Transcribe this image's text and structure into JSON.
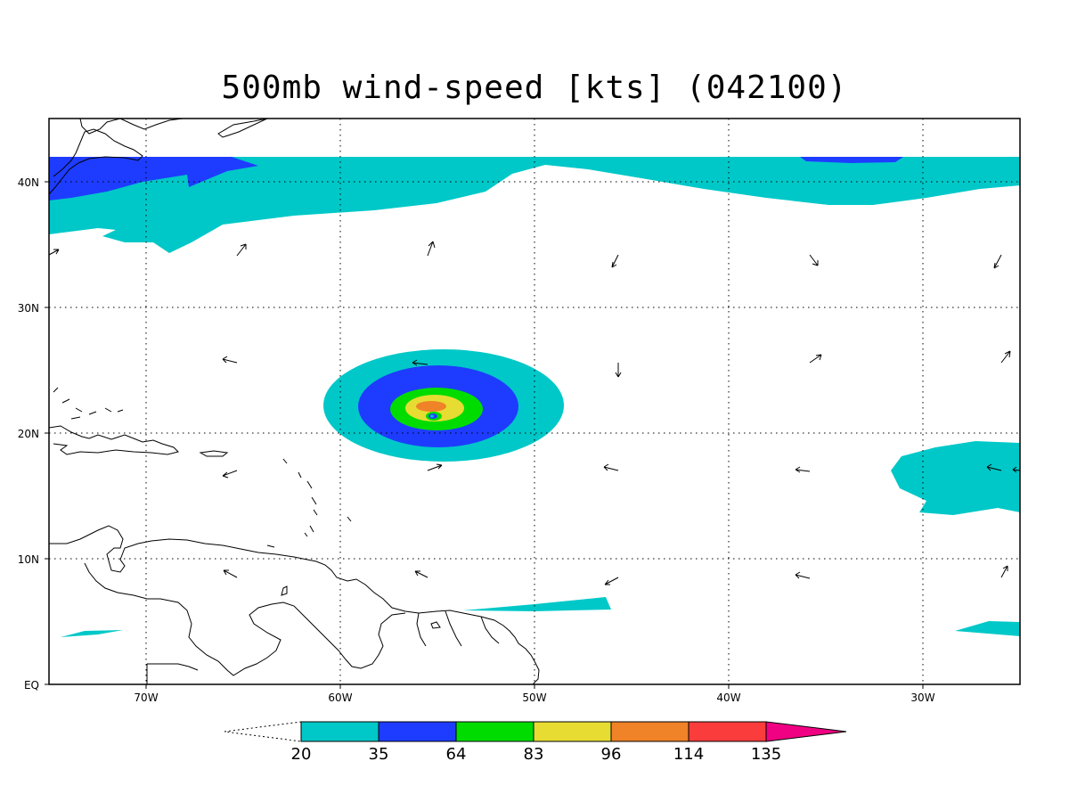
{
  "title": "500mb wind-speed [kts] (042100)",
  "map": {
    "lon_range": [
      -75,
      -25
    ],
    "lat_range": [
      0,
      45
    ],
    "grid": "dotted",
    "lon_ticks": [
      {
        "value": -70,
        "label": "70W"
      },
      {
        "value": -60,
        "label": "60W"
      },
      {
        "value": -50,
        "label": "50W"
      },
      {
        "value": -40,
        "label": "40W"
      },
      {
        "value": -30,
        "label": "30W"
      }
    ],
    "lat_ticks": [
      {
        "value": 0,
        "label": "EQ"
      },
      {
        "value": 10,
        "label": "10N"
      },
      {
        "value": 20,
        "label": "20N"
      },
      {
        "value": 30,
        "label": "30N"
      },
      {
        "value": 40,
        "label": "40N"
      }
    ]
  },
  "colorbar": {
    "levels": [
      "20",
      "35",
      "64",
      "83",
      "96",
      "114",
      "135"
    ],
    "colors": [
      "#00c8c8",
      "#1e3cff",
      "#00dc00",
      "#e6dc32",
      "#f08228",
      "#fa3c3c",
      "#f00082"
    ]
  }
}
